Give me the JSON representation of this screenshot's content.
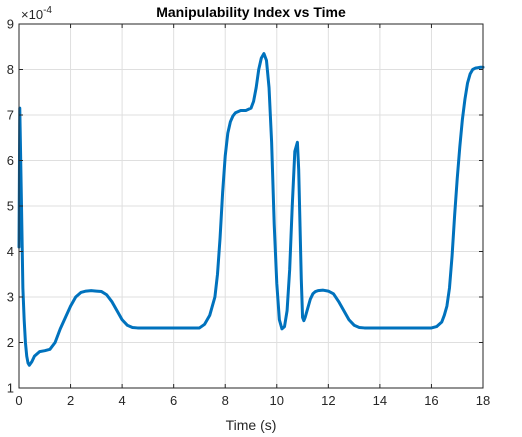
{
  "chart_data": {
    "type": "line",
    "title": "Manipulability Index vs Time",
    "xlabel": "Time (s)",
    "ylabel": "",
    "xlim": [
      0,
      18
    ],
    "ylim": [
      1,
      9
    ],
    "y_scale_exponent_label": "×10",
    "y_scale_exponent": "-4",
    "xticks": [
      "0",
      "2",
      "4",
      "6",
      "8",
      "10",
      "12",
      "14",
      "16",
      "18"
    ],
    "yticks": [
      "1",
      "2",
      "3",
      "4",
      "5",
      "6",
      "7",
      "8",
      "9"
    ],
    "grid": true,
    "series_color": "#0072BD",
    "series": [
      {
        "x": [
          0,
          0.03,
          0.06,
          0.1,
          0.15,
          0.2,
          0.25,
          0.3,
          0.35,
          0.4,
          0.5,
          0.6,
          0.8,
          1.0,
          1.2,
          1.4,
          1.6,
          1.8,
          2.0,
          2.2,
          2.4,
          2.6,
          2.8,
          3.0,
          3.2,
          3.4,
          3.6,
          3.8,
          4.0,
          4.2,
          4.4,
          4.6,
          4.8,
          5.0,
          5.5,
          6.0,
          6.5,
          7.0,
          7.2,
          7.4,
          7.6,
          7.7,
          7.8,
          7.9,
          8.0,
          8.1,
          8.2,
          8.3,
          8.4,
          8.6,
          8.8,
          9.0,
          9.1,
          9.2,
          9.3,
          9.4,
          9.5,
          9.6,
          9.7,
          9.8,
          9.9,
          10.0,
          10.1,
          10.2,
          10.3,
          10.4,
          10.5,
          10.6,
          10.7,
          10.8,
          10.85,
          10.9,
          10.95,
          11.0,
          11.05,
          11.1,
          11.2,
          11.3,
          11.4,
          11.5,
          11.6,
          11.8,
          12.0,
          12.2,
          12.4,
          12.6,
          12.8,
          13.0,
          13.2,
          13.4,
          13.6,
          13.8,
          14.0,
          14.5,
          15.0,
          15.5,
          16.0,
          16.2,
          16.4,
          16.5,
          16.6,
          16.7,
          16.8,
          16.9,
          17.0,
          17.1,
          17.2,
          17.3,
          17.4,
          17.5,
          17.6,
          17.7,
          17.8,
          17.9,
          18.0
        ],
        "y": [
          4.1,
          7.15,
          6.2,
          4.9,
          3.2,
          2.5,
          2.0,
          1.7,
          1.55,
          1.5,
          1.58,
          1.7,
          1.8,
          1.82,
          1.85,
          2.0,
          2.3,
          2.55,
          2.8,
          3.0,
          3.1,
          3.13,
          3.14,
          3.13,
          3.12,
          3.05,
          2.9,
          2.7,
          2.5,
          2.38,
          2.33,
          2.32,
          2.32,
          2.32,
          2.32,
          2.32,
          2.32,
          2.32,
          2.4,
          2.6,
          3.0,
          3.5,
          4.3,
          5.3,
          6.1,
          6.6,
          6.85,
          6.98,
          7.05,
          7.1,
          7.1,
          7.15,
          7.3,
          7.6,
          8.0,
          8.25,
          8.35,
          8.2,
          7.6,
          6.4,
          4.6,
          3.3,
          2.5,
          2.3,
          2.35,
          2.7,
          3.6,
          5.0,
          6.2,
          6.4,
          5.8,
          4.6,
          3.4,
          2.55,
          2.48,
          2.55,
          2.75,
          2.95,
          3.07,
          3.12,
          3.14,
          3.15,
          3.13,
          3.07,
          2.9,
          2.7,
          2.5,
          2.38,
          2.33,
          2.32,
          2.32,
          2.32,
          2.32,
          2.32,
          2.32,
          2.32,
          2.32,
          2.35,
          2.45,
          2.6,
          2.8,
          3.2,
          3.9,
          4.8,
          5.6,
          6.3,
          6.9,
          7.35,
          7.7,
          7.9,
          8.0,
          8.03,
          8.04,
          8.05,
          8.05
        ]
      }
    ]
  }
}
